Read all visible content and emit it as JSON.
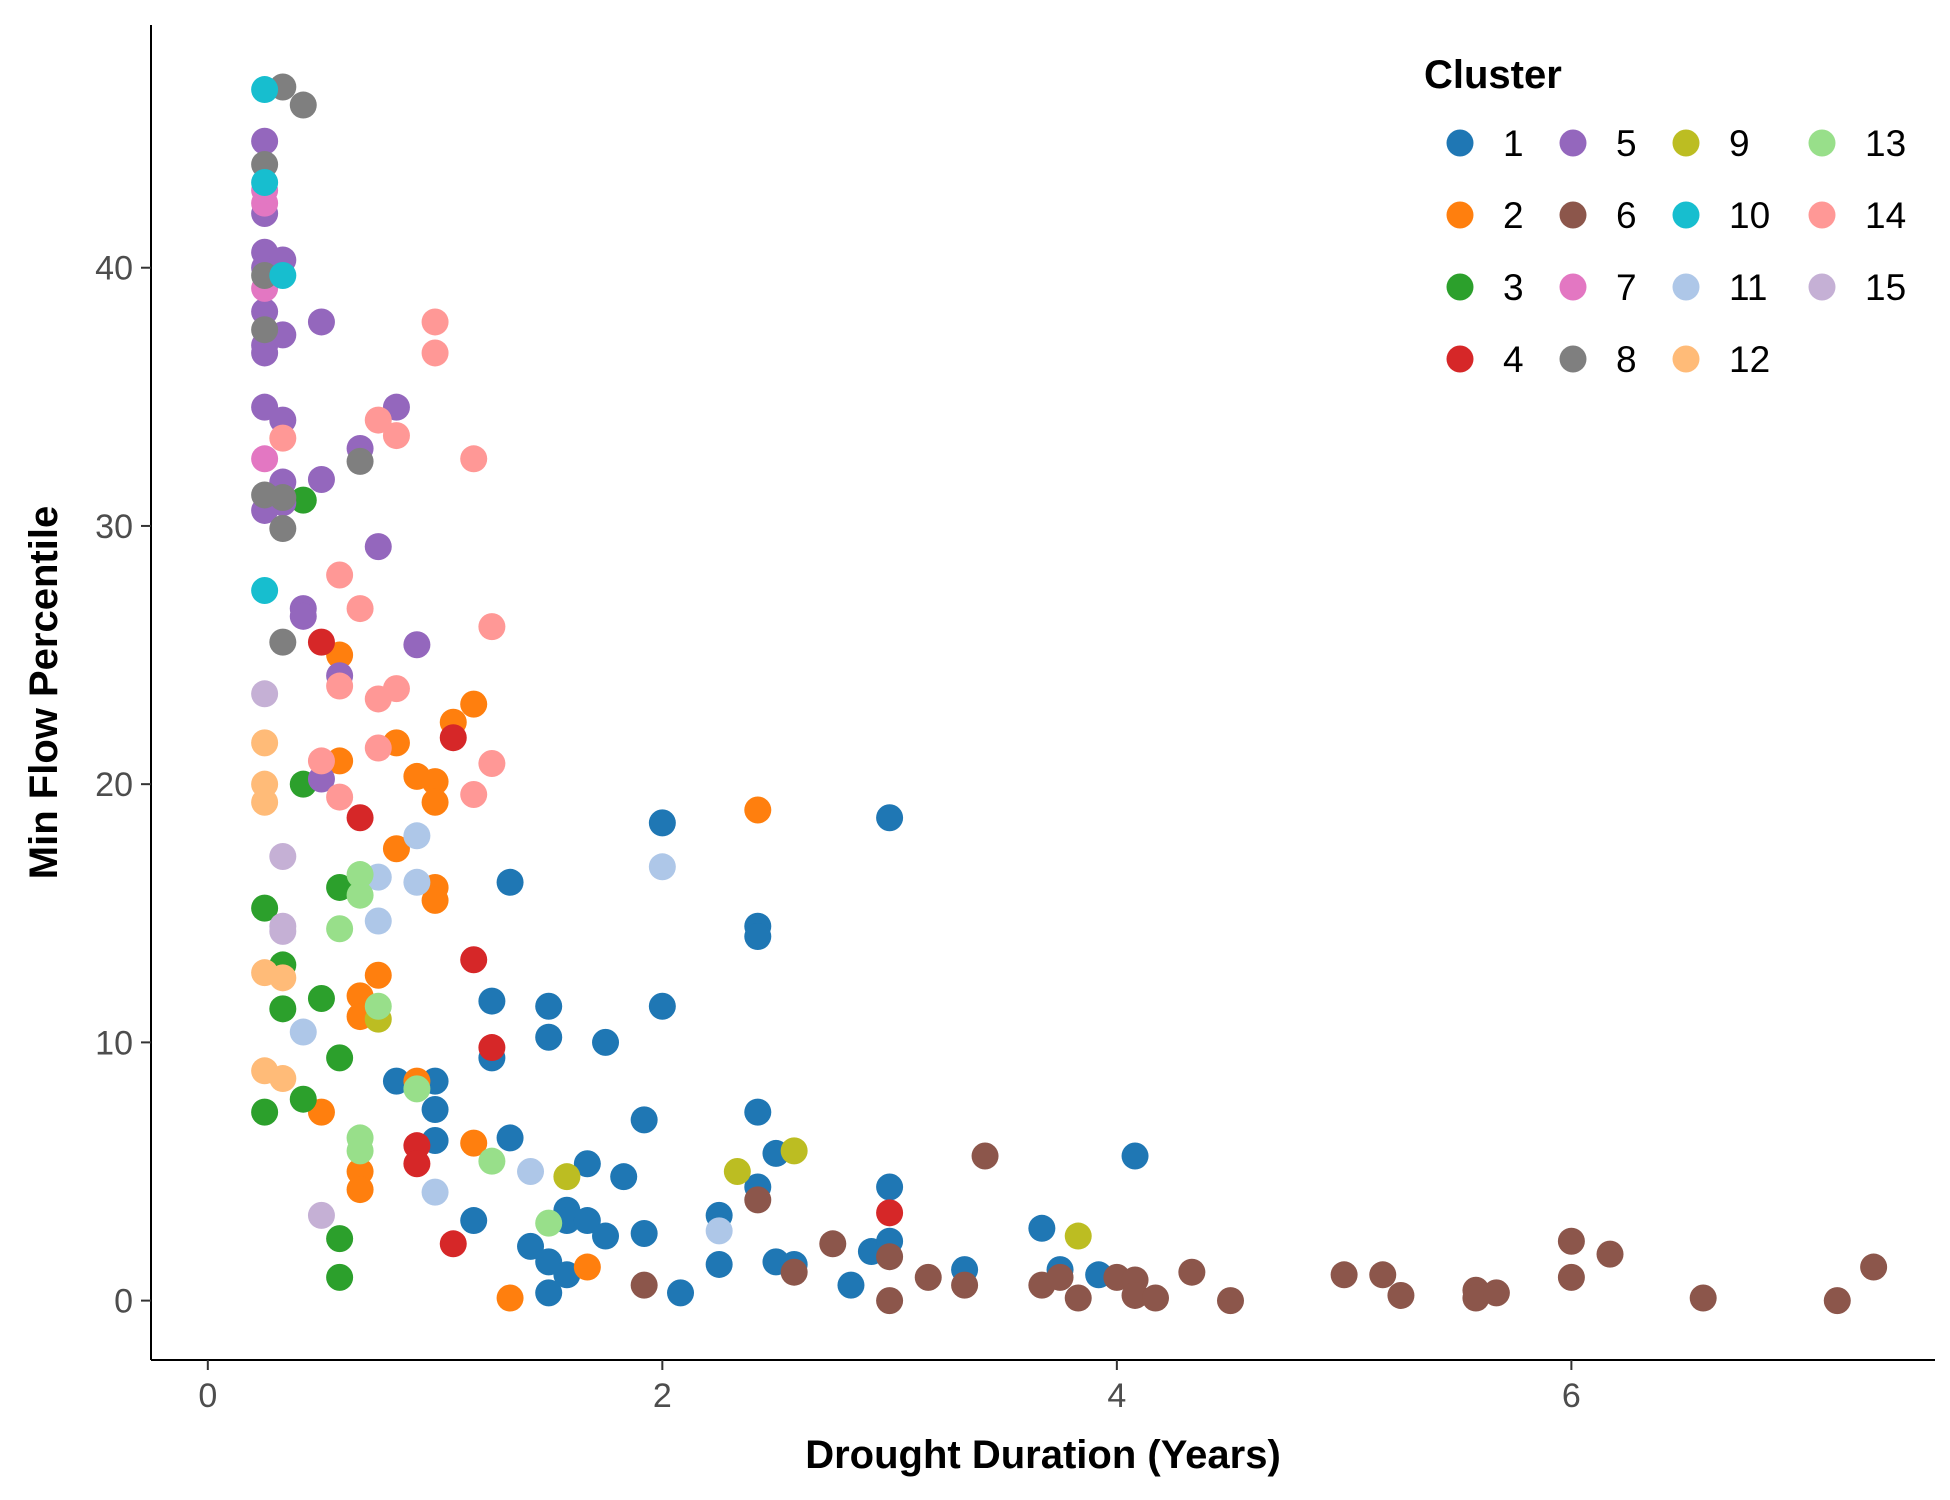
{
  "chart_data": {
    "type": "scatter",
    "title": "",
    "xlabel": "Drought Duration (Years)",
    "ylabel": "Min Flow Percentile",
    "xlim": [
      -0.25,
      7.6
    ],
    "ylim": [
      -2.3,
      49.4
    ],
    "xticks": [
      0,
      2,
      4,
      6
    ],
    "yticks": [
      0,
      10,
      20,
      30,
      40
    ],
    "grid": false,
    "legend": {
      "title": "Cluster",
      "position": "top-right",
      "ncol": 4
    },
    "series": [
      {
        "name": "1",
        "color": "#1f77b4",
        "points": [
          [
            0.83,
            8.5
          ],
          [
            1.0,
            8.5
          ],
          [
            1.0,
            7.4
          ],
          [
            1.0,
            6.2
          ],
          [
            1.17,
            3.1
          ],
          [
            1.25,
            11.6
          ],
          [
            1.25,
            9.4
          ],
          [
            1.33,
            16.2
          ],
          [
            1.33,
            6.3
          ],
          [
            1.42,
            2.1
          ],
          [
            1.5,
            11.4
          ],
          [
            1.5,
            10.2
          ],
          [
            1.5,
            1.5
          ],
          [
            1.5,
            0.3
          ],
          [
            1.58,
            3.5
          ],
          [
            1.58,
            3.1
          ],
          [
            1.58,
            1.0
          ],
          [
            1.67,
            5.3
          ],
          [
            1.67,
            3.1
          ],
          [
            1.75,
            10.0
          ],
          [
            1.75,
            2.5
          ],
          [
            1.83,
            4.8
          ],
          [
            1.92,
            7.0
          ],
          [
            1.92,
            2.6
          ],
          [
            2.0,
            18.5
          ],
          [
            2.0,
            11.4
          ],
          [
            2.08,
            0.3
          ],
          [
            2.25,
            3.3
          ],
          [
            2.25,
            1.4
          ],
          [
            2.42,
            14.5
          ],
          [
            2.42,
            14.1
          ],
          [
            2.42,
            7.3
          ],
          [
            2.42,
            4.4
          ],
          [
            2.5,
            5.7
          ],
          [
            2.5,
            1.5
          ],
          [
            2.58,
            1.4
          ],
          [
            2.83,
            0.6
          ],
          [
            2.92,
            1.9
          ],
          [
            3.0,
            18.7
          ],
          [
            3.0,
            4.4
          ],
          [
            3.0,
            2.3
          ],
          [
            3.33,
            1.2
          ],
          [
            3.67,
            2.8
          ],
          [
            3.75,
            1.2
          ],
          [
            3.92,
            1.0
          ],
          [
            4.08,
            5.6
          ]
        ]
      },
      {
        "name": "2",
        "color": "#ff7f0e",
        "points": [
          [
            0.5,
            7.3
          ],
          [
            0.58,
            25.0
          ],
          [
            0.58,
            20.9
          ],
          [
            0.67,
            11.8
          ],
          [
            0.67,
            11.0
          ],
          [
            0.67,
            5.0
          ],
          [
            0.67,
            4.3
          ],
          [
            0.75,
            12.6
          ],
          [
            0.83,
            21.6
          ],
          [
            0.83,
            17.5
          ],
          [
            0.92,
            20.3
          ],
          [
            0.92,
            8.5
          ],
          [
            1.0,
            20.1
          ],
          [
            1.0,
            19.3
          ],
          [
            1.0,
            16.0
          ],
          [
            1.0,
            15.5
          ],
          [
            1.08,
            22.4
          ],
          [
            1.17,
            23.1
          ],
          [
            1.17,
            6.1
          ],
          [
            1.33,
            0.1
          ],
          [
            1.67,
            1.3
          ],
          [
            2.42,
            19.0
          ]
        ]
      },
      {
        "name": "3",
        "color": "#2ca02c",
        "points": [
          [
            0.25,
            15.2
          ],
          [
            0.25,
            7.3
          ],
          [
            0.33,
            13.0
          ],
          [
            0.33,
            11.3
          ],
          [
            0.42,
            31.0
          ],
          [
            0.42,
            20.0
          ],
          [
            0.42,
            7.8
          ],
          [
            0.5,
            11.7
          ],
          [
            0.58,
            16.0
          ],
          [
            0.58,
            9.4
          ],
          [
            0.58,
            2.4
          ],
          [
            0.58,
            0.9
          ]
        ]
      },
      {
        "name": "4",
        "color": "#d62728",
        "points": [
          [
            0.5,
            25.5
          ],
          [
            0.67,
            18.7
          ],
          [
            0.92,
            6.0
          ],
          [
            0.92,
            5.3
          ],
          [
            1.08,
            21.8
          ],
          [
            1.08,
            2.2
          ],
          [
            1.17,
            13.2
          ],
          [
            1.25,
            9.8
          ],
          [
            3.0,
            3.4
          ]
        ]
      },
      {
        "name": "5",
        "color": "#9467bd",
        "points": [
          [
            0.25,
            44.9
          ],
          [
            0.25,
            42.1
          ],
          [
            0.25,
            40.6
          ],
          [
            0.25,
            40.0
          ],
          [
            0.25,
            38.3
          ],
          [
            0.25,
            37.0
          ],
          [
            0.25,
            36.7
          ],
          [
            0.25,
            34.6
          ],
          [
            0.25,
            30.6
          ],
          [
            0.33,
            40.3
          ],
          [
            0.33,
            37.4
          ],
          [
            0.33,
            34.1
          ],
          [
            0.33,
            31.7
          ],
          [
            0.33,
            30.9
          ],
          [
            0.42,
            26.8
          ],
          [
            0.42,
            26.5
          ],
          [
            0.5,
            37.9
          ],
          [
            0.5,
            31.8
          ],
          [
            0.5,
            20.2
          ],
          [
            0.58,
            24.2
          ],
          [
            0.67,
            33.0
          ],
          [
            0.75,
            29.2
          ],
          [
            0.83,
            34.6
          ],
          [
            0.92,
            25.4
          ]
        ]
      },
      {
        "name": "6",
        "color": "#8c564b",
        "points": [
          [
            1.92,
            0.6
          ],
          [
            2.42,
            3.9
          ],
          [
            2.58,
            1.1
          ],
          [
            2.75,
            2.2
          ],
          [
            3.0,
            1.7
          ],
          [
            3.0,
            0.0
          ],
          [
            3.17,
            0.9
          ],
          [
            3.33,
            0.6
          ],
          [
            3.42,
            5.6
          ],
          [
            3.67,
            0.6
          ],
          [
            3.75,
            0.9
          ],
          [
            3.83,
            0.1
          ],
          [
            4.0,
            0.9
          ],
          [
            4.08,
            0.8
          ],
          [
            4.08,
            0.2
          ],
          [
            4.17,
            0.1
          ],
          [
            4.33,
            1.1
          ],
          [
            4.5,
            0.0
          ],
          [
            5.0,
            1.0
          ],
          [
            5.17,
            1.0
          ],
          [
            5.25,
            0.2
          ],
          [
            5.58,
            0.4
          ],
          [
            5.58,
            0.1
          ],
          [
            5.67,
            0.3
          ],
          [
            6.0,
            2.3
          ],
          [
            6.0,
            0.9
          ],
          [
            6.17,
            1.8
          ],
          [
            6.58,
            0.1
          ],
          [
            7.17,
            0.0
          ],
          [
            7.33,
            1.3
          ]
        ]
      },
      {
        "name": "7",
        "color": "#e377c2",
        "points": [
          [
            0.25,
            42.5
          ],
          [
            0.25,
            43.0
          ],
          [
            0.25,
            39.2
          ],
          [
            0.25,
            32.6
          ]
        ]
      },
      {
        "name": "8",
        "color": "#7f7f7f",
        "points": [
          [
            0.25,
            44.0
          ],
          [
            0.25,
            39.7
          ],
          [
            0.25,
            37.6
          ],
          [
            0.25,
            31.2
          ],
          [
            0.33,
            47.0
          ],
          [
            0.33,
            31.1
          ],
          [
            0.33,
            29.9
          ],
          [
            0.33,
            25.5
          ],
          [
            0.42,
            46.3
          ],
          [
            0.67,
            32.5
          ]
        ]
      },
      {
        "name": "9",
        "color": "#bcbd22",
        "points": [
          [
            0.75,
            10.9
          ],
          [
            1.58,
            4.8
          ],
          [
            2.33,
            5.0
          ],
          [
            2.58,
            5.8
          ],
          [
            3.83,
            2.5
          ]
        ]
      },
      {
        "name": "10",
        "color": "#17becf",
        "points": [
          [
            0.25,
            46.9
          ],
          [
            0.25,
            43.3
          ],
          [
            0.25,
            27.5
          ],
          [
            0.33,
            39.7
          ]
        ]
      },
      {
        "name": "11",
        "color": "#aec7e8",
        "points": [
          [
            0.42,
            10.4
          ],
          [
            0.75,
            16.4
          ],
          [
            0.75,
            14.7
          ],
          [
            0.92,
            18.0
          ],
          [
            0.92,
            16.2
          ],
          [
            1.0,
            4.2
          ],
          [
            1.42,
            5.0
          ],
          [
            2.0,
            16.8
          ],
          [
            2.25,
            2.7
          ]
        ]
      },
      {
        "name": "12",
        "color": "#ffbb78",
        "points": [
          [
            0.25,
            21.6
          ],
          [
            0.25,
            20.0
          ],
          [
            0.25,
            19.3
          ],
          [
            0.25,
            12.7
          ],
          [
            0.25,
            8.9
          ],
          [
            0.33,
            12.5
          ],
          [
            0.33,
            8.6
          ]
        ]
      },
      {
        "name": "13",
        "color": "#98df8a",
        "points": [
          [
            0.58,
            14.4
          ],
          [
            0.67,
            16.5
          ],
          [
            0.67,
            15.7
          ],
          [
            0.67,
            6.3
          ],
          [
            0.67,
            5.8
          ],
          [
            0.75,
            11.4
          ],
          [
            0.92,
            8.2
          ],
          [
            1.25,
            5.4
          ],
          [
            1.5,
            3.0
          ]
        ]
      },
      {
        "name": "14",
        "color": "#ff9896",
        "points": [
          [
            0.33,
            33.4
          ],
          [
            0.5,
            20.9
          ],
          [
            0.58,
            28.1
          ],
          [
            0.58,
            23.8
          ],
          [
            0.58,
            19.5
          ],
          [
            0.67,
            26.8
          ],
          [
            0.75,
            34.1
          ],
          [
            0.75,
            23.3
          ],
          [
            0.75,
            21.4
          ],
          [
            0.83,
            33.5
          ],
          [
            0.83,
            23.7
          ],
          [
            1.0,
            37.9
          ],
          [
            1.0,
            36.7
          ],
          [
            1.17,
            32.6
          ],
          [
            1.17,
            19.6
          ],
          [
            1.25,
            26.1
          ],
          [
            1.25,
            20.8
          ]
        ]
      },
      {
        "name": "15",
        "color": "#c5b0d5",
        "points": [
          [
            0.25,
            23.5
          ],
          [
            0.33,
            17.2
          ],
          [
            0.33,
            14.5
          ],
          [
            0.33,
            14.3
          ],
          [
            0.5,
            3.3
          ]
        ]
      }
    ]
  }
}
